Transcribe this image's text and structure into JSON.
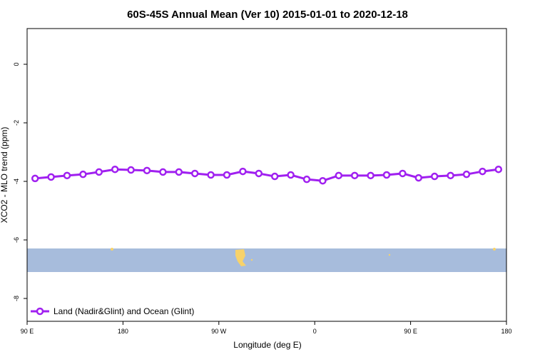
{
  "chart_data": {
    "type": "line",
    "title": "60S-45S Annual Mean (Ver 10)   2015-01-01 to 2020-12-18",
    "x_label": "Longitude (deg E)",
    "y_label": "XCO2 - MLO trend (ppm)",
    "x": [
      97.5,
      112.5,
      127.5,
      142.5,
      157.5,
      172.5,
      187.5,
      202.5,
      217.5,
      232.5,
      247.5,
      262.5,
      277.5,
      292.5,
      307.5,
      322.5,
      337.5,
      352.5,
      367.5,
      382.5,
      397.5,
      412.5,
      427.5,
      442.5,
      457.5,
      472.5,
      487.5,
      502.5,
      517.5,
      532.5
    ],
    "series": [
      {
        "name": "Land (Nadir&Glint) and Ocean (Glint)",
        "color": "#a020f0",
        "values": [
          -3.9,
          -3.85,
          -3.8,
          -3.76,
          -3.68,
          -3.59,
          -3.61,
          -3.63,
          -3.68,
          -3.68,
          -3.73,
          -3.78,
          -3.78,
          -3.66,
          -3.73,
          -3.83,
          -3.78,
          -3.93,
          -3.98,
          -3.8,
          -3.8,
          -3.8,
          -3.78,
          -3.73,
          -3.88,
          -3.83,
          -3.8,
          -3.76,
          -3.66,
          -3.59
        ]
      }
    ],
    "xlim": [
      90,
      540
    ],
    "xticks": [
      {
        "value": 90,
        "label": "90 E"
      },
      180,
      {
        "value": 270,
        "label": "90 W"
      },
      {
        "value": 360,
        "label": "0"
      },
      {
        "value": 450,
        "label": "90 E"
      },
      {
        "value": 540,
        "label": "180"
      }
    ],
    "ylim": [
      -8.78,
      1.22
    ],
    "yticks": [
      0,
      -2,
      -4,
      -6,
      -8
    ],
    "legend": "bottom-left"
  }
}
